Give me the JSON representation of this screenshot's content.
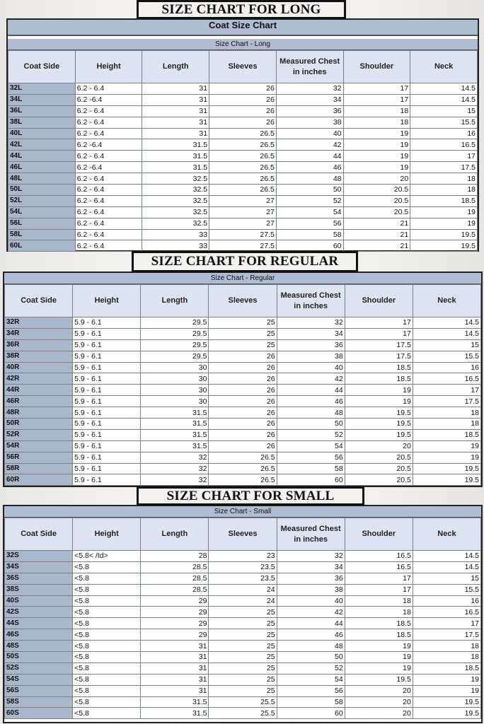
{
  "headers": [
    "Coat Side",
    "Height",
    "Length",
    "Sleeves",
    "Measured Chest in inches",
    "Shoulder",
    "Neck"
  ],
  "sections": [
    {
      "banner": "SIZE CHART  FOR LONG",
      "main_caption": "Coat Size Chart",
      "caption": "Size Chart - Long",
      "rows": [
        [
          "32L",
          "6.2 - 6.4",
          "31",
          "26",
          "32",
          "17",
          "14.5"
        ],
        [
          "34L",
          "6.2 -6.4",
          "31",
          "26",
          "34",
          "17",
          "14.5"
        ],
        [
          "36L",
          "6.2 - 6.4",
          "31",
          "26",
          "36",
          "18",
          "15"
        ],
        [
          "38L",
          "6.2 - 6.4",
          "31",
          "26",
          "38",
          "18",
          "15.5"
        ],
        [
          "40L",
          "6.2 - 6.4",
          "31",
          "26.5",
          "40",
          "19",
          "16"
        ],
        [
          "42L",
          "6.2 -6.4",
          "31.5",
          "26.5",
          "42",
          "19",
          "16.5"
        ],
        [
          "44L",
          "6.2 - 6.4",
          "31.5",
          "26.5",
          "44",
          "19",
          "17"
        ],
        [
          "46L",
          "6.2 -6.4",
          "31.5",
          "26.5",
          "46",
          "19",
          "17.5"
        ],
        [
          "48L",
          "6.2 - 6.4",
          "32.5",
          "26.5",
          "48",
          "20",
          "18"
        ],
        [
          "50L",
          "6.2 - 6.4",
          "32.5",
          "26.5",
          "50",
          "20.5",
          "18"
        ],
        [
          "52L",
          "6.2 - 6.4",
          "32.5",
          "27",
          "52",
          "20.5",
          "18.5"
        ],
        [
          "54L",
          "6.2 - 6.4",
          "32.5",
          "27",
          "54",
          "20.5",
          "19"
        ],
        [
          "56L",
          "6.2 - 6.4",
          "32.5",
          "27",
          "56",
          "21",
          "19"
        ],
        [
          "58L",
          "6.2 - 6.4",
          "33",
          "27.5",
          "58",
          "21",
          "19.5"
        ],
        [
          "60L",
          "6.2 - 6.4",
          "33",
          "27.5",
          "60",
          "21",
          "19.5"
        ]
      ]
    },
    {
      "banner": "SIZE CHART FOR REGULAR",
      "caption": "Size Chart - Regular",
      "rows": [
        [
          "32R",
          "5.9 - 6.1",
          "29.5",
          "25",
          "32",
          "17",
          "14.5"
        ],
        [
          "34R",
          "5.9 - 6.1",
          "29.5",
          "25",
          "34",
          "17",
          "14.5"
        ],
        [
          "36R",
          "5.9 - 6.1",
          "29.5",
          "25",
          "36",
          "17.5",
          "15"
        ],
        [
          "38R",
          "5.9 - 6.1",
          "29.5",
          "26",
          "38",
          "17.5",
          "15.5"
        ],
        [
          "40R",
          "5.9 - 6.1",
          "30",
          "26",
          "40",
          "18.5",
          "16"
        ],
        [
          "42R",
          "5.9 - 6.1",
          "30",
          "26",
          "42",
          "18.5",
          "16.5"
        ],
        [
          "44R",
          "5.9 - 6.1",
          "30",
          "26",
          "44",
          "19",
          "17"
        ],
        [
          "46R",
          "5.9 - 6.1",
          "30",
          "26",
          "46",
          "19",
          "17.5"
        ],
        [
          "48R",
          "5.9 - 6.1",
          "31.5",
          "26",
          "48",
          "19.5",
          "18"
        ],
        [
          "50R",
          "5.9 - 6.1",
          "31.5",
          "26",
          "50",
          "19.5",
          "18"
        ],
        [
          "52R",
          "5.9 - 6.1",
          "31.5",
          "26",
          "52",
          "19.5",
          "18.5"
        ],
        [
          "54R",
          "5.9 - 6.1",
          "31.5",
          "26",
          "54",
          "20",
          "19"
        ],
        [
          "56R",
          "5.9 - 6.1",
          "32",
          "26.5",
          "56",
          "20.5",
          "19"
        ],
        [
          "58R",
          "5.9 - 6.1",
          "32",
          "26.5",
          "58",
          "20.5",
          "19.5"
        ],
        [
          "60R",
          "5.9 - 6.1",
          "32",
          "26.5",
          "60",
          "20.5",
          "19.5"
        ]
      ]
    },
    {
      "banner": "SIZE CHART FOR SMALL",
      "caption": "Size Chart - Small",
      "rows": [
        [
          "32S",
          "<5.8< /td>",
          "28",
          "23",
          "32",
          "16.5",
          "14.5"
        ],
        [
          "34S",
          "<5.8",
          "28.5",
          "23.5",
          "34",
          "16.5",
          "14.5"
        ],
        [
          "36S",
          "<5.8",
          "28.5",
          "23.5",
          "36",
          "17",
          "15"
        ],
        [
          "38S",
          "<5.8",
          "28.5",
          "24",
          "38",
          "17",
          "15.5"
        ],
        [
          "40S",
          "<5.8",
          "29",
          "24",
          "40",
          "18",
          "16"
        ],
        [
          "42S",
          "<5.8",
          "29",
          "25",
          "42",
          "18",
          "16.5"
        ],
        [
          "44S",
          "<5.8",
          "29",
          "25",
          "44",
          "18.5",
          "17"
        ],
        [
          "46S",
          "<5.8",
          "29",
          "25",
          "46",
          "18.5",
          "17.5"
        ],
        [
          "48S",
          "<5.8",
          "31",
          "25",
          "48",
          "19",
          "18"
        ],
        [
          "50S",
          "<5.8",
          "31",
          "25",
          "50",
          "19",
          "18"
        ],
        [
          "52S",
          "<5.8",
          "31",
          "25",
          "52",
          "19",
          "18.5"
        ],
        [
          "54S",
          "<5.8",
          "31",
          "25",
          "54",
          "19.5",
          "19"
        ],
        [
          "56S",
          "<5.8",
          "31",
          "25",
          "56",
          "20",
          "19"
        ],
        [
          "58S",
          "<5.8",
          "31.5",
          "25.5",
          "58",
          "20",
          "19.5"
        ],
        [
          "60S",
          "<5.8",
          "31.5",
          "25.5",
          "60",
          "20",
          "19.5"
        ]
      ]
    }
  ]
}
